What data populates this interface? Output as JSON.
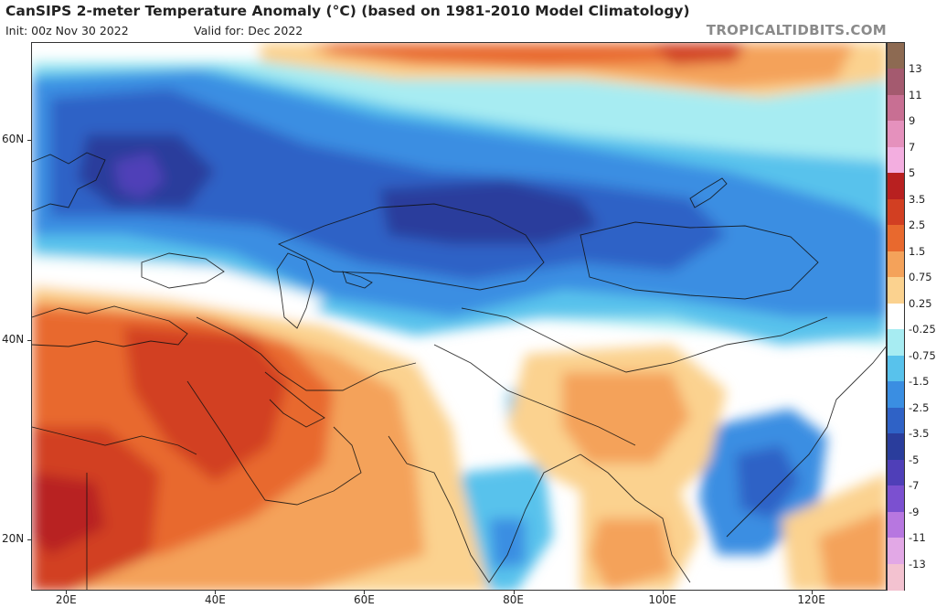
{
  "header": {
    "title": "CanSIPS 2-meter Temperature Anomaly (°C) (based on 1981-2010 Model Climatology)",
    "init": "Init: 00z Nov 30 2022",
    "valid": "Valid for: Dec 2022",
    "brand": "TROPICALTIDBITS.COM"
  },
  "axes": {
    "lat_labels": [
      {
        "text": "60N",
        "value": 60
      },
      {
        "text": "40N",
        "value": 40
      },
      {
        "text": "20N",
        "value": 20
      }
    ],
    "lon_labels": [
      {
        "text": "20E",
        "value": 20
      },
      {
        "text": "40E",
        "value": 40
      },
      {
        "text": "60E",
        "value": 60
      },
      {
        "text": "80E",
        "value": 80
      },
      {
        "text": "100E",
        "value": 100
      },
      {
        "text": "120E",
        "value": 120
      }
    ]
  },
  "colorbar": {
    "labels": [
      "13",
      "11",
      "9",
      "7",
      "5",
      "3.5",
      "2.5",
      "1.5",
      "0.75",
      "0.25",
      "-0.25",
      "-0.75",
      "-1.5",
      "-2.5",
      "-3.5",
      "-5",
      "-7",
      "-9",
      "-11",
      "-13"
    ],
    "colors": [
      "#8d6a52",
      "#a45a6f",
      "#c86f93",
      "#e591bd",
      "#f3aee0",
      "#b82020",
      "#d23f22",
      "#e8692e",
      "#f4a25a",
      "#fbd28f",
      "#ffffff",
      "#a7ecf2",
      "#58c2ec",
      "#3a8ee2",
      "#2f62c6",
      "#2a3d9c",
      "#4f3fb8",
      "#7b50d0",
      "#b777e0",
      "#e2a8e6",
      "#f3c2d0"
    ]
  },
  "map_colors": {
    "strong_cold": "#2a3d9c",
    "cold": "#2f62c6",
    "cool": "#3a8ee2",
    "mild_cool": "#58c2ec",
    "slight_cool": "#a7ecf2",
    "neutral": "#ffffff",
    "slight_warm": "#fbd28f",
    "mild_warm": "#f4a25a",
    "warm": "#e8692e",
    "hot": "#d23f22",
    "very_hot": "#b82020",
    "extreme_cold": "#4f3fb8"
  }
}
